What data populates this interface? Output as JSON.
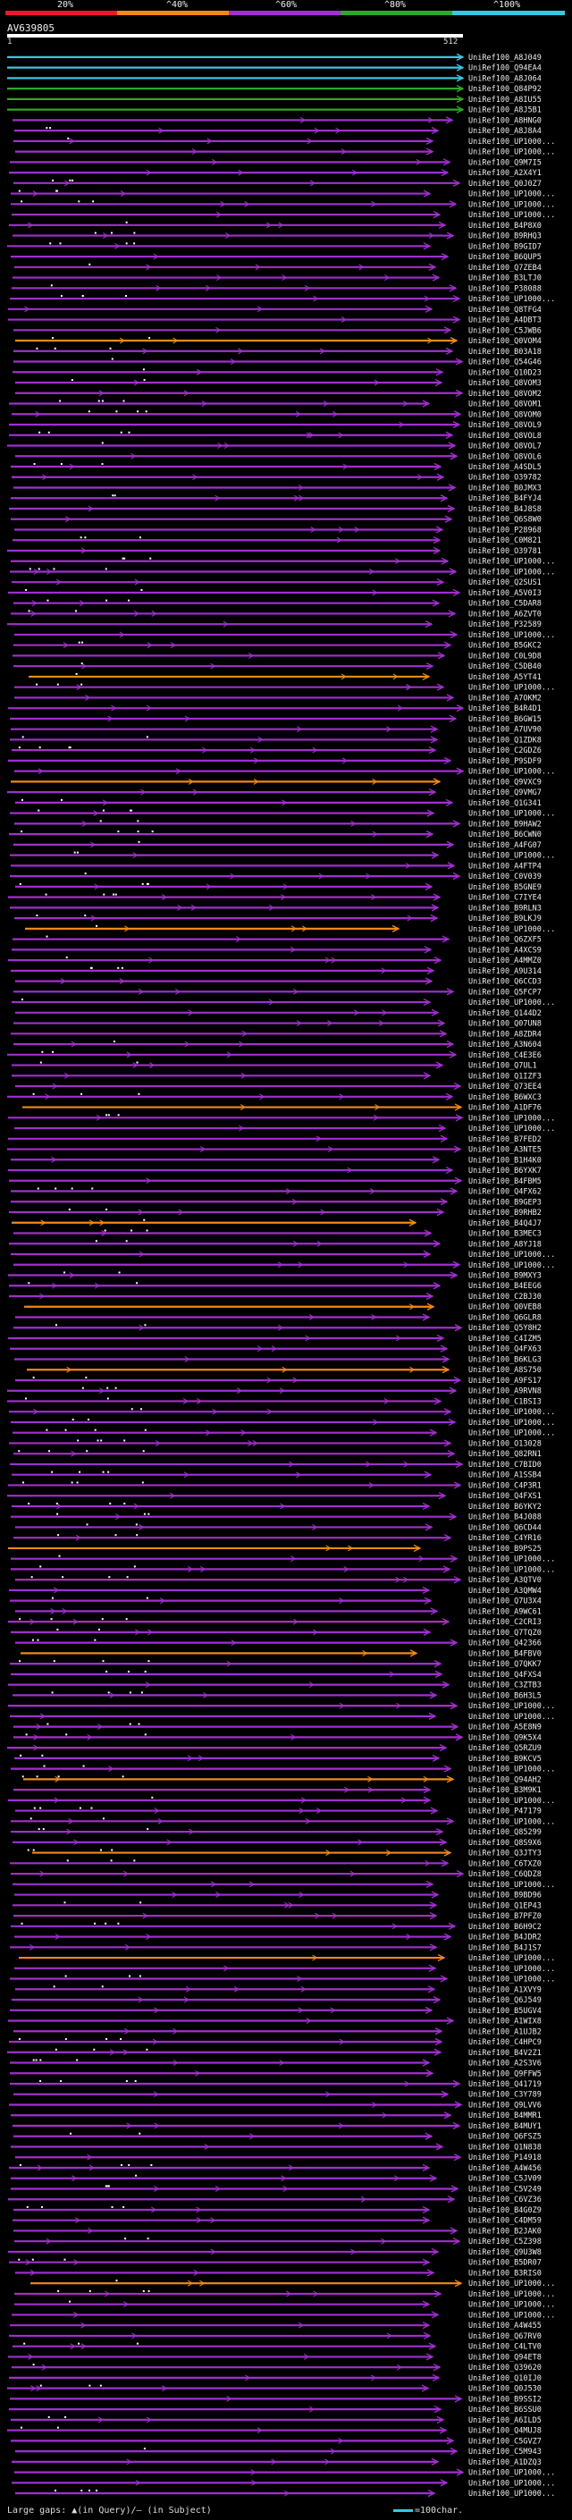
{
  "legend": {
    "labels": [
      "20%",
      "^40%",
      "^60%",
      "^80%",
      "^100%"
    ],
    "colors": [
      "#e8192c",
      "#f0891a",
      "#a12fd0",
      "#2ca82c",
      "#38c7e0"
    ]
  },
  "query": {
    "id": "AV639805",
    "start": "1",
    "end": "512"
  },
  "hits": [
    {
      "id": "UniRef100_A8J049",
      "c": 4
    },
    {
      "id": "UniRef100_Q94EA4",
      "c": 4
    },
    {
      "id": "UniRef100_A8J064",
      "c": 4
    },
    {
      "id": "UniRef100_Q84P92",
      "c": 3
    },
    {
      "id": "UniRef100_A8IU55",
      "c": 3
    },
    {
      "id": "UniRef100_A8J5B1",
      "c": 3
    },
    {
      "id": "UniRef100_A8HNG0",
      "c": 2
    },
    {
      "id": "UniRef100_A8J8A4",
      "c": 2
    },
    {
      "id": "UniRef100_UP1000...",
      "c": 2
    },
    {
      "id": "UniRef100_UP1000...",
      "c": 2
    },
    {
      "id": "UniRef100_Q9M7I5",
      "c": 2
    },
    {
      "id": "UniRef100_A2X4Y1",
      "c": 2
    },
    {
      "id": "UniRef100_Q0J0Z7",
      "c": 2
    },
    {
      "id": "UniRef100_UP1000...",
      "c": 2
    },
    {
      "id": "UniRef100_UP1000...",
      "c": 2
    },
    {
      "id": "UniRef100_UP1000...",
      "c": 2
    },
    {
      "id": "UniRef100_B4P8X0",
      "c": 2
    },
    {
      "id": "UniRef100_B9RHQ3",
      "c": 2
    },
    {
      "id": "UniRef100_B9GID7",
      "c": 2
    },
    {
      "id": "UniRef100_B6QUP5",
      "c": 2
    },
    {
      "id": "UniRef100_Q7ZEB4",
      "c": 2
    },
    {
      "id": "UniRef100_B3LTJ0",
      "c": 2
    },
    {
      "id": "UniRef100_P38088",
      "c": 2
    },
    {
      "id": "UniRef100_UP1000...",
      "c": 2
    },
    {
      "id": "UniRef100_Q8TFG4",
      "c": 2
    },
    {
      "id": "UniRef100_A4DBT3",
      "c": 2
    },
    {
      "id": "UniRef100_C5JWB6",
      "c": 2
    },
    {
      "id": "UniRef100_Q0VOM4",
      "c": 1
    },
    {
      "id": "UniRef100_B03A18",
      "c": 2
    },
    {
      "id": "UniRef100_Q54G46",
      "c": 2
    },
    {
      "id": "UniRef100_Q10D23",
      "c": 2
    },
    {
      "id": "UniRef100_Q8VOM3",
      "c": 2
    },
    {
      "id": "UniRef100_Q8VOM2",
      "c": 2
    },
    {
      "id": "UniRef100_Q8VOM1",
      "c": 2
    },
    {
      "id": "UniRef100_Q8VOM0",
      "c": 2
    },
    {
      "id": "UniRef100_Q8VOL9",
      "c": 2
    },
    {
      "id": "UniRef100_Q8VOL8",
      "c": 2
    },
    {
      "id": "UniRef100_Q8VOL7",
      "c": 2
    },
    {
      "id": "UniRef100_Q8VOL6",
      "c": 2
    },
    {
      "id": "UniRef100_A4SDL5",
      "c": 2
    },
    {
      "id": "UniRef100_O39782",
      "c": 2
    },
    {
      "id": "UniRef100_B0JMX3",
      "c": 2
    },
    {
      "id": "UniRef100_B4FYJ4",
      "c": 2
    },
    {
      "id": "UniRef100_B4J8S8",
      "c": 2
    },
    {
      "id": "UniRef100_Q6S8W0",
      "c": 2
    },
    {
      "id": "UniRef100_P28968",
      "c": 2
    },
    {
      "id": "UniRef100_C0M821",
      "c": 2
    },
    {
      "id": "UniRef100_O39781",
      "c": 2
    },
    {
      "id": "UniRef100_UP1000...",
      "c": 2
    },
    {
      "id": "UniRef100_UP1000...",
      "c": 2
    },
    {
      "id": "UniRef100_Q2SUS1",
      "c": 2
    },
    {
      "id": "UniRef100_A5V0I3",
      "c": 2
    },
    {
      "id": "UniRef100_C5DAR8",
      "c": 2
    },
    {
      "id": "UniRef100_A6ZVT0",
      "c": 2
    },
    {
      "id": "UniRef100_P32589",
      "c": 2
    },
    {
      "id": "UniRef100_UP1000...",
      "c": 2
    },
    {
      "id": "UniRef100_B5GKC2",
      "c": 2
    },
    {
      "id": "UniRef100_C0L9D8",
      "c": 2
    },
    {
      "id": "UniRef100_C5DB40",
      "c": 2
    },
    {
      "id": "UniRef100_A5YT41",
      "c": 1
    },
    {
      "id": "UniRef100_UP1000...",
      "c": 2
    },
    {
      "id": "UniRef100_A7OKM2",
      "c": 2
    },
    {
      "id": "UniRef100_B4R4D1",
      "c": 2
    },
    {
      "id": "UniRef100_B6GW15",
      "c": 2
    },
    {
      "id": "UniRef100_A7UV90",
      "c": 2
    },
    {
      "id": "UniRef100_Q1ZDK8",
      "c": 2
    },
    {
      "id": "UniRef100_C2GDZ6",
      "c": 2
    },
    {
      "id": "UniRef100_P9SDF9",
      "c": 2
    },
    {
      "id": "UniRef100_UP1000...",
      "c": 2
    },
    {
      "id": "UniRef100_Q9VXC9",
      "c": 1
    },
    {
      "id": "UniRef100_Q9VMG7",
      "c": 2
    },
    {
      "id": "UniRef100_Q1G341",
      "c": 2
    },
    {
      "id": "UniRef100_UP1000...",
      "c": 2
    },
    {
      "id": "UniRef100_B9HAW2",
      "c": 2
    },
    {
      "id": "UniRef100_B6CWN0",
      "c": 2
    },
    {
      "id": "UniRef100_A4FG07",
      "c": 2
    },
    {
      "id": "UniRef100_UP1000...",
      "c": 2
    },
    {
      "id": "UniRef100_A4FTP4",
      "c": 2
    },
    {
      "id": "UniRef100_C0V039",
      "c": 2
    },
    {
      "id": "UniRef100_B5GNE9",
      "c": 2
    },
    {
      "id": "UniRef100_C7IYE4",
      "c": 2
    },
    {
      "id": "UniRef100_B9RLN3",
      "c": 2
    },
    {
      "id": "UniRef100_B9LKJ9",
      "c": 2
    },
    {
      "id": "UniRef100_UP1000...",
      "c": 1
    },
    {
      "id": "UniRef100_Q6ZXF5",
      "c": 2
    },
    {
      "id": "UniRef100_A4XCS9",
      "c": 2
    },
    {
      "id": "UniRef100_A4MMZ0",
      "c": 2
    },
    {
      "id": "UniRef100_A9U314",
      "c": 2
    },
    {
      "id": "UniRef100_Q6CCD3",
      "c": 2
    },
    {
      "id": "UniRef100_Q5FCP7",
      "c": 2
    },
    {
      "id": "UniRef100_UP1000...",
      "c": 2
    },
    {
      "id": "UniRef100_Q144D2",
      "c": 2
    },
    {
      "id": "UniRef100_Q07UN8",
      "c": 2
    },
    {
      "id": "UniRef100_A8ZDR4",
      "c": 2
    },
    {
      "id": "UniRef100_A3N604",
      "c": 2
    },
    {
      "id": "UniRef100_C4E3E6",
      "c": 2
    },
    {
      "id": "UniRef100_Q7UL1",
      "c": 2
    },
    {
      "id": "UniRef100_Q1IZF3",
      "c": 2
    },
    {
      "id": "UniRef100_Q73EE4",
      "c": 2
    },
    {
      "id": "UniRef100_B6WXC3",
      "c": 2
    },
    {
      "id": "UniRef100_A1DF76",
      "c": 1
    },
    {
      "id": "UniRef100_UP1000...",
      "c": 2
    },
    {
      "id": "UniRef100_UP1000...",
      "c": 2
    },
    {
      "id": "UniRef100_B7FED2",
      "c": 2
    },
    {
      "id": "UniRef100_A3NTE5",
      "c": 2
    },
    {
      "id": "UniRef100_B1H4K0",
      "c": 2
    },
    {
      "id": "UniRef100_B6YXK7",
      "c": 2
    },
    {
      "id": "UniRef100_B4FBM5",
      "c": 2
    },
    {
      "id": "UniRef100_Q4FX62",
      "c": 2
    },
    {
      "id": "UniRef100_B9GEP3",
      "c": 2
    },
    {
      "id": "UniRef100_B9RHB2",
      "c": 2
    },
    {
      "id": "UniRef100_B4Q4J7",
      "c": 1
    },
    {
      "id": "UniRef100_B3MEC3",
      "c": 2
    },
    {
      "id": "UniRef100_A8YJ18",
      "c": 2
    },
    {
      "id": "UniRef100_UP1000...",
      "c": 2
    },
    {
      "id": "UniRef100_UP1000...",
      "c": 2
    },
    {
      "id": "UniRef100_B9MXY3",
      "c": 2
    },
    {
      "id": "UniRef100_B4EEG6",
      "c": 2
    },
    {
      "id": "UniRef100_C2BJ30",
      "c": 2
    },
    {
      "id": "UniRef100_Q0VEB8",
      "c": 1
    },
    {
      "id": "UniRef100_Q6GLR8",
      "c": 2
    },
    {
      "id": "UniRef100_Q5Y8H2",
      "c": 2
    },
    {
      "id": "UniRef100_C4IZM5",
      "c": 2
    },
    {
      "id": "UniRef100_Q4FX63",
      "c": 2
    },
    {
      "id": "UniRef100_B6KLG3",
      "c": 2
    },
    {
      "id": "UniRef100_A8S750",
      "c": 1
    },
    {
      "id": "UniRef100_A9FS17",
      "c": 2
    },
    {
      "id": "UniRef100_A9RVN8",
      "c": 2
    },
    {
      "id": "UniRef100_C1BSI3",
      "c": 2
    },
    {
      "id": "UniRef100_UP1000...",
      "c": 2
    },
    {
      "id": "UniRef100_UP1000...",
      "c": 2
    },
    {
      "id": "UniRef100_UP1000...",
      "c": 2
    },
    {
      "id": "UniRef100_O13028",
      "c": 2
    },
    {
      "id": "UniRef100_Q82RN1",
      "c": 2
    },
    {
      "id": "UniRef100_C7BID0",
      "c": 2
    },
    {
      "id": "UniRef100_A1SSB4",
      "c": 2
    },
    {
      "id": "UniRef100_C4P3R1",
      "c": 2
    },
    {
      "id": "UniRef100_Q4FXS1",
      "c": 2
    },
    {
      "id": "UniRef100_B6YKY2",
      "c": 2
    },
    {
      "id": "UniRef100_B4J088",
      "c": 2
    },
    {
      "id": "UniRef100_Q6CD44",
      "c": 2
    },
    {
      "id": "UniRef100_C4YR16",
      "c": 2
    },
    {
      "id": "UniRef100_B9PS25",
      "c": 1
    },
    {
      "id": "UniRef100_UP1000...",
      "c": 2
    },
    {
      "id": "UniRef100_UP1000...",
      "c": 2
    },
    {
      "id": "UniRef100_A3QTV0",
      "c": 2
    },
    {
      "id": "UniRef100_A3QMW4",
      "c": 2
    },
    {
      "id": "UniRef100_Q7U3X4",
      "c": 2
    },
    {
      "id": "UniRef100_A9WC61",
      "c": 2
    },
    {
      "id": "UniRef100_C2CRI3",
      "c": 2
    },
    {
      "id": "UniRef100_Q7TQZ0",
      "c": 2
    },
    {
      "id": "UniRef100_Q42366",
      "c": 2
    },
    {
      "id": "UniRef100_B4FBV0",
      "c": 1
    },
    {
      "id": "UniRef100_Q7QKK7",
      "c": 2
    },
    {
      "id": "UniRef100_Q4FXS4",
      "c": 2
    },
    {
      "id": "UniRef100_C3ZTB3",
      "c": 2
    },
    {
      "id": "UniRef100_B6H3L5",
      "c": 2
    },
    {
      "id": "UniRef100_UP1000...",
      "c": 2
    },
    {
      "id": "UniRef100_UP1000...",
      "c": 2
    },
    {
      "id": "UniRef100_A5E8N9",
      "c": 2
    },
    {
      "id": "UniRef100_Q9K5X4",
      "c": 2
    },
    {
      "id": "UniRef100_Q5RZU9",
      "c": 2
    },
    {
      "id": "UniRef100_B9KCV5",
      "c": 2
    },
    {
      "id": "UniRef100_UP1000...",
      "c": 2
    },
    {
      "id": "UniRef100_Q94AH2",
      "c": 1
    },
    {
      "id": "UniRef100_B3M9K1",
      "c": 2
    },
    {
      "id": "UniRef100_UP1000...",
      "c": 2
    },
    {
      "id": "UniRef100_P47179",
      "c": 2
    },
    {
      "id": "UniRef100_UP1000...",
      "c": 2
    },
    {
      "id": "UniRef100_Q85299",
      "c": 2
    },
    {
      "id": "UniRef100_Q8S9X6",
      "c": 2
    },
    {
      "id": "UniRef100_Q3JTY3",
      "c": 1
    },
    {
      "id": "UniRef100_C6TXZ0",
      "c": 2
    },
    {
      "id": "UniRef100_C6QDZ8",
      "c": 2
    },
    {
      "id": "UniRef100_UP1000...",
      "c": 2
    },
    {
      "id": "UniRef100_B9BD96",
      "c": 2
    },
    {
      "id": "UniRef100_Q1EP43",
      "c": 2
    },
    {
      "id": "UniRef100_B7PFZ0",
      "c": 2
    },
    {
      "id": "UniRef100_B6H9C2",
      "c": 2
    },
    {
      "id": "UniRef100_B4JDR2",
      "c": 2
    },
    {
      "id": "UniRef100_B4J1S7",
      "c": 2
    },
    {
      "id": "UniRef100_UP1000...",
      "c": 1
    },
    {
      "id": "UniRef100_UP1000...",
      "c": 2
    },
    {
      "id": "UniRef100_UP1000...",
      "c": 2
    },
    {
      "id": "UniRef100_A1XVY9",
      "c": 2
    },
    {
      "id": "UniRef100_Q6J549",
      "c": 2
    },
    {
      "id": "UniRef100_B5UGV4",
      "c": 2
    },
    {
      "id": "UniRef100_A1WIX8",
      "c": 2
    },
    {
      "id": "UniRef100_A1UJB2",
      "c": 2
    },
    {
      "id": "UniRef100_C4HPC9",
      "c": 2
    },
    {
      "id": "UniRef100_B4V2Z1",
      "c": 2
    },
    {
      "id": "UniRef100_A2S3V6",
      "c": 2
    },
    {
      "id": "UniRef100_Q9FFW5",
      "c": 2
    },
    {
      "id": "UniRef100_Q41719",
      "c": 2
    },
    {
      "id": "UniRef100_C3Y789",
      "c": 2
    },
    {
      "id": "UniRef100_Q9LVV6",
      "c": 2
    },
    {
      "id": "UniRef100_B4MMR1",
      "c": 2
    },
    {
      "id": "UniRef100_B4MUY1",
      "c": 2
    },
    {
      "id": "UniRef100_Q6FSZ5",
      "c": 2
    },
    {
      "id": "UniRef100_Q1N838",
      "c": 2
    },
    {
      "id": "UniRef100_P14918",
      "c": 2
    },
    {
      "id": "UniRef100_A4W456",
      "c": 2
    },
    {
      "id": "UniRef100_C5JV09",
      "c": 2
    },
    {
      "id": "UniRef100_C5V249",
      "c": 2
    },
    {
      "id": "UniRef100_C6VZ36",
      "c": 2
    },
    {
      "id": "UniRef100_B4G0Z9",
      "c": 2
    },
    {
      "id": "UniRef100_C4DM59",
      "c": 2
    },
    {
      "id": "UniRef100_B2JAK0",
      "c": 2
    },
    {
      "id": "UniRef100_C5Z398",
      "c": 2
    },
    {
      "id": "UniRef100_Q9U3W8",
      "c": 2
    },
    {
      "id": "UniRef100_B5DR07",
      "c": 2
    },
    {
      "id": "UniRef100_B3RIS0",
      "c": 2
    },
    {
      "id": "UniRef100_UP1000...",
      "c": 1
    },
    {
      "id": "UniRef100_UP1000...",
      "c": 2
    },
    {
      "id": "UniRef100_UP1000...",
      "c": 2
    },
    {
      "id": "UniRef100_UP1000...",
      "c": 2
    },
    {
      "id": "UniRef100_A4W455",
      "c": 2
    },
    {
      "id": "UniRef100_Q67RV0",
      "c": 2
    },
    {
      "id": "UniRef100_C4LTV0",
      "c": 2
    },
    {
      "id": "UniRef100_Q94ET8",
      "c": 2
    },
    {
      "id": "UniRef100_Q39620",
      "c": 2
    },
    {
      "id": "UniRef100_Q10IJ0",
      "c": 2
    },
    {
      "id": "UniRef100_Q0J530",
      "c": 2
    },
    {
      "id": "UniRef100_B9SSI2",
      "c": 2
    },
    {
      "id": "UniRef100_B6SSU0",
      "c": 2
    },
    {
      "id": "UniRef100_A6ILD5",
      "c": 2
    },
    {
      "id": "UniRef100_Q4MUJ8",
      "c": 2
    },
    {
      "id": "UniRef100_C5GVZ7",
      "c": 2
    },
    {
      "id": "UniRef100_C5M943",
      "c": 2
    },
    {
      "id": "UniRef100_A1DZQ3",
      "c": 2
    },
    {
      "id": "UniRef100_UP1000...",
      "c": 2
    },
    {
      "id": "UniRef100_UP1000...",
      "c": 2
    },
    {
      "id": "UniRef100_UP1000...",
      "c": 2
    }
  ],
  "footer": {
    "gaps_text": "Large gaps: ▲(in Query)/– (in Subject)",
    "scale_text": "=100char."
  }
}
